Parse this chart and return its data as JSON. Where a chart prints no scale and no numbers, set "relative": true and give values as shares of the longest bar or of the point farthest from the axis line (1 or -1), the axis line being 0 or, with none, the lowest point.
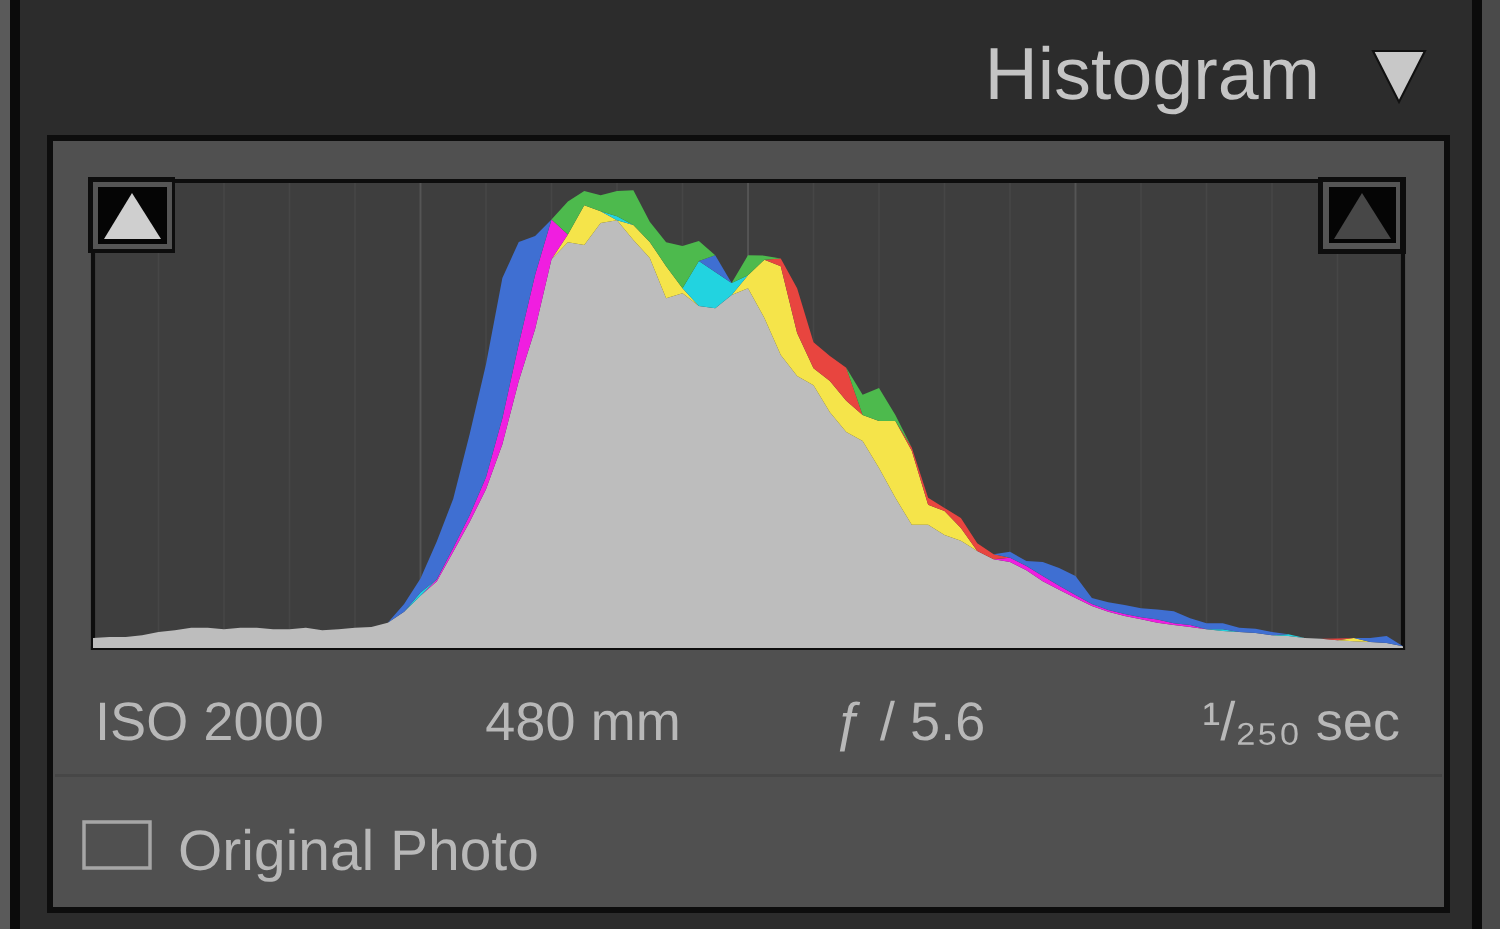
{
  "chart_data": {
    "type": "area",
    "title": "Histogram",
    "relative": true,
    "stacked": true,
    "grid": "x",
    "categories": [
      null,
      null,
      null,
      null,
      null,
      null,
      null,
      null,
      null,
      null,
      null,
      null,
      null,
      null,
      null,
      null,
      null,
      null,
      null,
      null,
      null,
      null,
      null,
      null,
      null,
      null,
      null,
      null,
      null,
      null,
      null,
      null,
      null,
      null,
      null,
      null,
      null,
      null,
      null,
      null,
      null,
      null,
      null,
      null,
      null,
      null,
      null,
      null,
      null,
      null,
      null,
      null,
      null,
      null,
      null,
      null,
      null,
      null,
      null,
      null,
      null,
      null,
      null,
      null,
      null,
      null,
      null,
      null,
      null,
      null,
      null,
      null,
      null,
      null,
      null,
      null,
      null,
      null,
      null,
      null,
      null
    ],
    "series": [
      {
        "color": "#bdbdbd",
        "values": [
          0.022,
          0.024,
          0.024,
          0.028,
          0.035,
          0.039,
          0.044,
          0.044,
          0.041,
          0.044,
          0.044,
          0.041,
          0.041,
          0.044,
          0.039,
          0.041,
          0.044,
          0.046,
          0.055,
          0.079,
          0.114,
          0.146,
          0.21,
          0.275,
          0.347,
          0.445,
          0.583,
          0.697,
          0.849,
          0.886,
          0.88,
          0.928,
          0.934,
          0.891,
          0.852,
          0.764,
          0.775,
          0.747,
          0.742,
          0.771,
          0.786,
          0.721,
          0.64,
          0.594,
          0.574,
          0.515,
          0.472,
          0.452,
          0.393,
          0.328,
          0.269,
          0.269,
          0.247,
          0.234,
          0.212,
          0.194,
          0.188,
          0.17,
          0.146,
          0.127,
          0.109,
          0.092,
          0.079,
          0.07,
          0.063,
          0.055,
          0.05,
          0.046,
          0.041,
          0.037,
          0.035,
          0.033,
          0.028,
          0.026,
          0.022,
          0.02,
          0.017,
          0.015,
          0.013,
          0.011,
          0.004
        ]
      },
      {
        "color": "#f5e44a",
        "values": [
          null,
          null,
          null,
          null,
          null,
          null,
          null,
          null,
          null,
          null,
          null,
          null,
          null,
          null,
          null,
          null,
          null,
          null,
          null,
          null,
          null,
          null,
          null,
          null,
          null,
          null,
          null,
          null,
          0,
          0.017,
          0.087,
          0.026,
          0,
          0.033,
          0.035,
          0.07,
          0.011,
          0,
          null,
          0,
          0.028,
          0.127,
          0.194,
          0.094,
          0.037,
          0.068,
          0.068,
          0.057,
          0.103,
          0.168,
          0.162,
          0.044,
          0.052,
          0.028,
          0,
          null,
          null,
          null,
          null,
          null,
          null,
          null,
          null,
          null,
          null,
          null,
          null,
          null,
          null,
          null,
          null,
          null,
          null,
          null,
          null,
          null,
          0,
          0.007,
          0,
          null,
          null
        ]
      },
      {
        "color": "#f01ee0",
        "values": [
          null,
          null,
          null,
          null,
          null,
          null,
          null,
          null,
          null,
          null,
          null,
          null,
          null,
          null,
          null,
          null,
          null,
          null,
          null,
          null,
          0,
          0.004,
          0.009,
          0.015,
          0.026,
          0.057,
          0.081,
          0.118,
          0.087,
          0,
          null,
          null,
          null,
          null,
          null,
          null,
          null,
          null,
          null,
          null,
          null,
          null,
          null,
          null,
          null,
          null,
          null,
          null,
          null,
          null,
          null,
          null,
          null,
          null,
          null,
          0,
          0.009,
          0.009,
          0.011,
          0.009,
          0.007,
          0.004,
          0.004,
          0.004,
          0.004,
          0.007,
          0.004,
          0.004,
          0,
          null,
          null,
          null,
          null,
          null,
          null,
          null,
          null,
          null,
          null,
          null,
          null
        ]
      },
      {
        "color": "#22d3e0",
        "values": [
          null,
          null,
          null,
          null,
          null,
          null,
          null,
          null,
          null,
          null,
          null,
          null,
          null,
          null,
          null,
          null,
          null,
          null,
          null,
          0,
          0.007,
          0,
          null,
          null,
          null,
          null,
          null,
          null,
          null,
          null,
          null,
          0,
          0.009,
          0,
          null,
          null,
          0,
          0.098,
          0.079,
          0.026,
          0,
          null,
          null,
          null,
          null,
          null,
          null,
          null,
          null,
          null,
          null,
          null,
          null,
          null,
          null,
          null,
          null,
          null,
          null,
          null,
          null,
          null,
          null,
          null,
          null,
          null,
          null,
          null,
          0,
          0.004,
          0,
          null,
          0,
          0.004,
          0,
          null,
          null,
          null,
          null,
          null,
          null
        ]
      },
      {
        "color": "#e8453f",
        "values": [
          null,
          null,
          null,
          null,
          null,
          null,
          null,
          null,
          null,
          null,
          null,
          null,
          null,
          null,
          null,
          null,
          null,
          null,
          null,
          null,
          null,
          null,
          null,
          null,
          null,
          null,
          null,
          null,
          null,
          null,
          null,
          null,
          null,
          null,
          null,
          null,
          null,
          null,
          null,
          null,
          null,
          0,
          0.017,
          0.098,
          0.057,
          0.055,
          0.072,
          0,
          null,
          0,
          0.007,
          0.015,
          0.007,
          0.022,
          0.017,
          0.011,
          0,
          null,
          null,
          null,
          null,
          null,
          null,
          null,
          null,
          null,
          null,
          null,
          null,
          null,
          null,
          null,
          null,
          null,
          null,
          0,
          0.004,
          0,
          null,
          null,
          null
        ]
      },
      {
        "color": "#3f6fd2",
        "values": [
          null,
          null,
          null,
          null,
          null,
          null,
          null,
          null,
          null,
          null,
          null,
          null,
          null,
          null,
          null,
          null,
          null,
          null,
          0,
          0.017,
          0.031,
          0.083,
          0.107,
          0.177,
          0.247,
          0.306,
          0.223,
          0.085,
          0,
          null,
          null,
          null,
          null,
          null,
          null,
          null,
          null,
          0,
          0.037,
          0,
          null,
          null,
          null,
          null,
          null,
          null,
          null,
          null,
          null,
          null,
          null,
          null,
          null,
          null,
          null,
          0,
          0.013,
          0.011,
          0.031,
          0.039,
          0.041,
          0.013,
          0.017,
          0.02,
          0.02,
          0.022,
          0.026,
          0.015,
          0.013,
          0.013,
          0.009,
          0.009,
          0.007,
          0,
          null,
          null,
          null,
          0,
          0.009,
          0.015,
          0
        ]
      },
      {
        "color": "#4dba4d",
        "values": [
          null,
          null,
          null,
          null,
          null,
          null,
          null,
          null,
          null,
          null,
          null,
          null,
          null,
          null,
          null,
          null,
          null,
          null,
          null,
          null,
          null,
          null,
          null,
          null,
          null,
          null,
          null,
          null,
          0,
          0.072,
          0.031,
          0.035,
          0.055,
          0.076,
          0.044,
          0.052,
          0.092,
          0.044,
          0,
          0,
          0.044,
          0.009,
          0,
          null,
          null,
          null,
          0,
          0.044,
          0.072,
          0.013,
          0,
          null,
          null,
          null,
          null,
          null,
          null,
          null,
          null,
          null,
          null,
          null,
          null,
          null,
          null,
          null,
          null,
          null,
          null,
          null,
          null,
          null,
          null,
          null,
          null,
          null,
          null,
          null,
          null,
          null,
          null
        ]
      }
    ],
    "annotations": [
      "ISO 2000",
      "480 mm",
      "ƒ / 5.6",
      "¹/₂₅₀ sec",
      "Original Photo"
    ]
  }
}
